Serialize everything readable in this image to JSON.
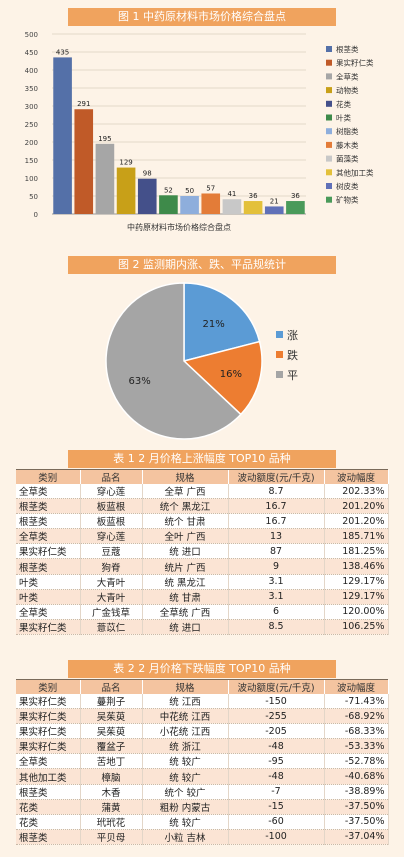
{
  "fig1": {
    "banner": "图 1    中药原材料市场价格综合盘点"
  },
  "fig2": {
    "banner": "图 2    监测期内涨、跌、平品规统计"
  },
  "table1": {
    "banner": "表 1    2 月价格上涨幅度 TOP10 品种"
  },
  "table2": {
    "banner": "表 2    2 月价格下跌幅度 TOP10 品种"
  },
  "chart_data": [
    {
      "type": "bar",
      "xlabel": "中药原材料市场价格综合盘点",
      "ylim": [
        0,
        500
      ],
      "yticks": [
        0,
        50,
        100,
        150,
        200,
        250,
        300,
        350,
        400,
        450,
        500
      ],
      "categories": [
        "根茎类",
        "果实籽仁类",
        "全草类",
        "动物类",
        "花类",
        "叶类",
        "树脂类",
        "藤木类",
        "菌藻类",
        "其他加工类",
        "树皮类",
        "矿物类"
      ],
      "values": [
        435,
        291,
        195,
        129,
        98,
        52,
        50,
        57,
        41,
        36,
        21,
        36
      ],
      "colors": [
        "#5470a8",
        "#c05a28",
        "#a6a6a6",
        "#c8a018",
        "#44508a",
        "#3e8a4a",
        "#8eaedc",
        "#e37c38",
        "#c8c8c8",
        "#e3c03a",
        "#6070b8",
        "#4a9a5a"
      ]
    },
    {
      "type": "pie",
      "categories": [
        "涨",
        "跌",
        "平"
      ],
      "values": [
        21,
        16,
        63
      ],
      "labels": [
        "21%",
        "16%",
        "63%"
      ],
      "colors": [
        "#5b9bd5",
        "#ed7d31",
        "#a5a5a5"
      ]
    },
    {
      "type": "table",
      "columns": [
        "类别",
        "品名",
        "规格",
        "波动额度(元/千克)",
        "波动幅度"
      ],
      "rows": [
        [
          "全草类",
          "穿心莲",
          "全草  广西",
          "8.7",
          "202.33%"
        ],
        [
          "根茎类",
          "板蓝根",
          "统个  黑龙江",
          "16.7",
          "201.20%"
        ],
        [
          "根茎类",
          "板蓝根",
          "统个  甘肃",
          "16.7",
          "201.20%"
        ],
        [
          "全草类",
          "穿心莲",
          "全叶  广西",
          "13",
          "185.71%"
        ],
        [
          "果实籽仁类",
          "豆蔻",
          "统  进口",
          "87",
          "181.25%"
        ],
        [
          "根茎类",
          "狗脊",
          "统片  广西",
          "9",
          "138.46%"
        ],
        [
          "叶类",
          "大青叶",
          "统  黑龙江",
          "3.1",
          "129.17%"
        ],
        [
          "叶类",
          "大青叶",
          "统  甘肃",
          "3.1",
          "129.17%"
        ],
        [
          "全草类",
          "广金钱草",
          "全草统  广西",
          "6",
          "120.00%"
        ],
        [
          "果实籽仁类",
          "薏苡仁",
          "统  进口",
          "8.5",
          "106.25%"
        ]
      ]
    },
    {
      "type": "table",
      "columns": [
        "类别",
        "品名",
        "规格",
        "波动额度(元/千克)",
        "波动幅度"
      ],
      "rows": [
        [
          "果实籽仁类",
          "蔓荆子",
          "统  江西",
          "-150",
          "-71.43%"
        ],
        [
          "果实籽仁类",
          "吴茱萸",
          "中花统  江西",
          "-255",
          "-68.92%"
        ],
        [
          "果实籽仁类",
          "吴茱萸",
          "小花统  江西",
          "-205",
          "-68.33%"
        ],
        [
          "果实籽仁类",
          "覆盆子",
          "统  浙江",
          "-48",
          "-53.33%"
        ],
        [
          "全草类",
          "苦地丁",
          "统  较广",
          "-95",
          "-52.78%"
        ],
        [
          "其他加工类",
          "樟脑",
          "统  较广",
          "-48",
          "-40.68%"
        ],
        [
          "根茎类",
          "木香",
          "统个  较广",
          "-7",
          "-38.89%"
        ],
        [
          "花类",
          "蒲黄",
          "粗粉  内蒙古",
          "-15",
          "-37.50%"
        ],
        [
          "花类",
          "玳玳花",
          "统  较广",
          "-60",
          "-37.50%"
        ],
        [
          "根茎类",
          "平贝母",
          "小粒  吉林",
          "-100",
          "-37.04%"
        ]
      ]
    }
  ]
}
